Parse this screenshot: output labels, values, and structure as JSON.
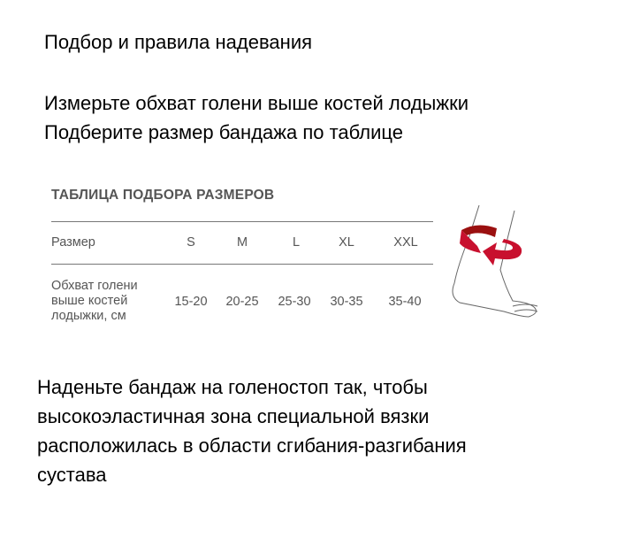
{
  "heading": "Подбор и правила надевания",
  "instructions": [
    "Измерьте обхват голени выше костей лодыжки",
    "Подберите размер бандажа по таблице"
  ],
  "size_table": {
    "title": "ТАБЛИЦА ПОДБОРА РАЗМЕРОВ",
    "row_headers": [
      "Размер",
      "Обхват голени выше костей лодыжки, см"
    ],
    "row_header_lines": [
      "Обхват голени",
      "выше костей",
      "лодыжки, см"
    ],
    "sizes": [
      "S",
      "M",
      "L",
      "XL",
      "XXL"
    ],
    "ranges": [
      "15-20",
      "20-25",
      "25-30",
      "30-35",
      "35-40"
    ]
  },
  "illustration": {
    "name": "ankle-with-red-arrow",
    "arrow_color": "#c8102e"
  },
  "footer_lines": [
    "Наденьте бандаж на голеностоп так, чтобы",
    "высокоэластичная зона специальной вязки",
    "расположилась в области сгибания-разгибания",
    "сустава"
  ]
}
